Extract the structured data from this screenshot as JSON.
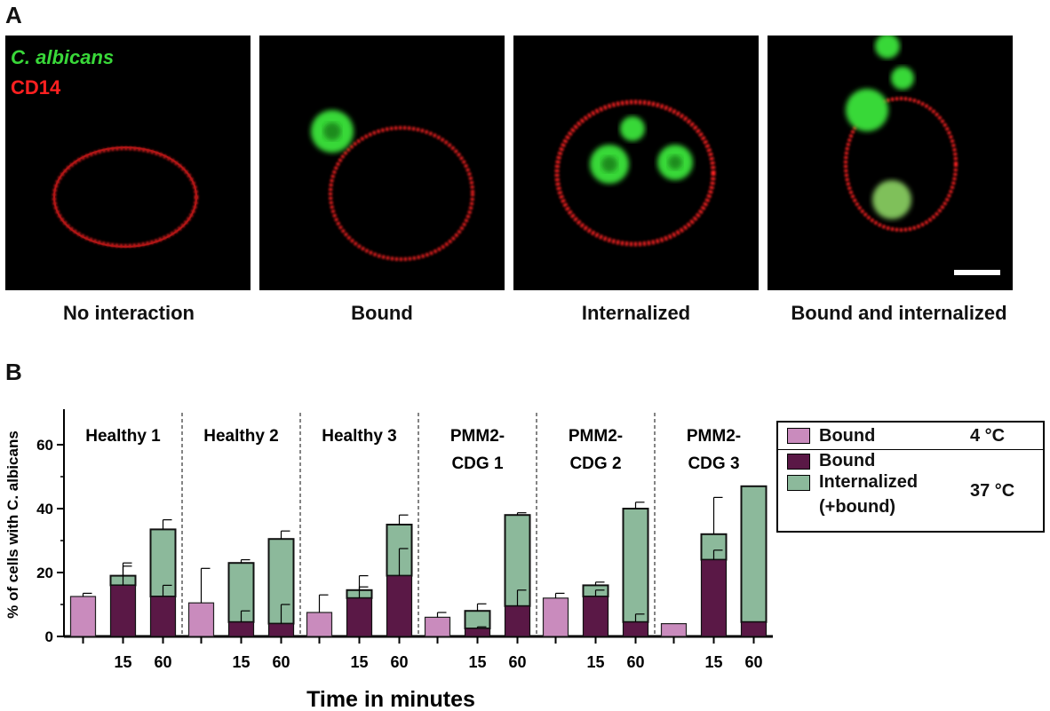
{
  "panel_a": {
    "letter": "A",
    "legend": {
      "green_label": "C. albicans",
      "red_label": "CD14"
    },
    "captions": [
      "No interaction",
      "Bound",
      "Internalized",
      "Bound and internalized"
    ]
  },
  "panel_b": {
    "letter": "B",
    "legend": {
      "items": [
        "Bound",
        "Bound",
        "Internalized",
        "(+bound)"
      ],
      "temps": [
        "4 °C",
        "37 °C"
      ]
    }
  },
  "colors": {
    "bound_4c": "#c98bbd",
    "bound_37c": "#5a1846",
    "internalized": "#8cb99b",
    "microscopy_green": "#39d839",
    "microscopy_red": "#ff2020"
  },
  "chart_data": {
    "type": "bar",
    "stacked": true,
    "xlabel": "Time in minutes",
    "ylabel": "% of cells with C. albicans",
    "ylim": [
      0,
      70
    ],
    "yticks": [
      0,
      20,
      40,
      60
    ],
    "groups": [
      {
        "label": [
          "Healthy 1"
        ],
        "bars": [
          {
            "time": "",
            "condition": "4 °C",
            "bound": 12.5,
            "err_bound": 1
          },
          {
            "time": "15",
            "condition": "37 °C",
            "bound": 16,
            "err_bound": 7,
            "total": 19,
            "err_total": 3
          },
          {
            "time": "60",
            "condition": "37 °C",
            "bound": 12.5,
            "err_bound": 3.5,
            "total": 33.5,
            "err_total": 3
          }
        ]
      },
      {
        "label": [
          "Healthy 2"
        ],
        "bars": [
          {
            "time": "",
            "condition": "4 °C",
            "bound": 10.5,
            "err_bound": 10.8
          },
          {
            "time": "15",
            "condition": "37 °C",
            "bound": 4.5,
            "err_bound": 3.5,
            "total": 23,
            "err_total": 1
          },
          {
            "time": "60",
            "condition": "37 °C",
            "bound": 4,
            "err_bound": 6,
            "total": 30.5,
            "err_total": 2.5
          }
        ]
      },
      {
        "label": [
          "Healthy 3"
        ],
        "bars": [
          {
            "time": "",
            "condition": "4 °C",
            "bound": 7.5,
            "err_bound": 5.5
          },
          {
            "time": "15",
            "condition": "37 °C",
            "bound": 12,
            "err_bound": 3.5,
            "total": 14.5,
            "err_total": 4.5
          },
          {
            "time": "60",
            "condition": "37 °C",
            "bound": 19,
            "err_bound": 8.5,
            "total": 35,
            "err_total": 3
          }
        ]
      },
      {
        "label": [
          "PMM2-",
          "CDG 1"
        ],
        "bars": [
          {
            "time": "",
            "condition": "4 °C",
            "bound": 6,
            "err_bound": 1.5
          },
          {
            "time": "15",
            "condition": "37 °C",
            "bound": 2.5,
            "err_bound": 0.5,
            "total": 8,
            "err_total": 2.2
          },
          {
            "time": "60",
            "condition": "37 °C",
            "bound": 9.5,
            "err_bound": 5,
            "total": 38,
            "err_total": 0.7
          }
        ]
      },
      {
        "label": [
          "PMM2-",
          "CDG 2"
        ],
        "bars": [
          {
            "time": "",
            "condition": "4 °C",
            "bound": 12,
            "err_bound": 1.5
          },
          {
            "time": "15",
            "condition": "37 °C",
            "bound": 12.5,
            "err_bound": 2,
            "total": 16,
            "err_total": 1
          },
          {
            "time": "60",
            "condition": "37 °C",
            "bound": 4.5,
            "err_bound": 2.5,
            "total": 40,
            "err_total": 2
          }
        ]
      },
      {
        "label": [
          "PMM2-",
          "CDG 3"
        ],
        "bars": [
          {
            "time": "",
            "condition": "4 °C",
            "bound": 4,
            "err_bound": 0
          },
          {
            "time": "15",
            "condition": "37 °C",
            "bound": 24,
            "err_bound": 3,
            "total": 32,
            "err_total": 11.5
          },
          {
            "time": "60",
            "condition": "37 °C",
            "bound": 4.5,
            "err_bound": 0,
            "total": 47,
            "err_total": 0
          }
        ]
      }
    ]
  }
}
